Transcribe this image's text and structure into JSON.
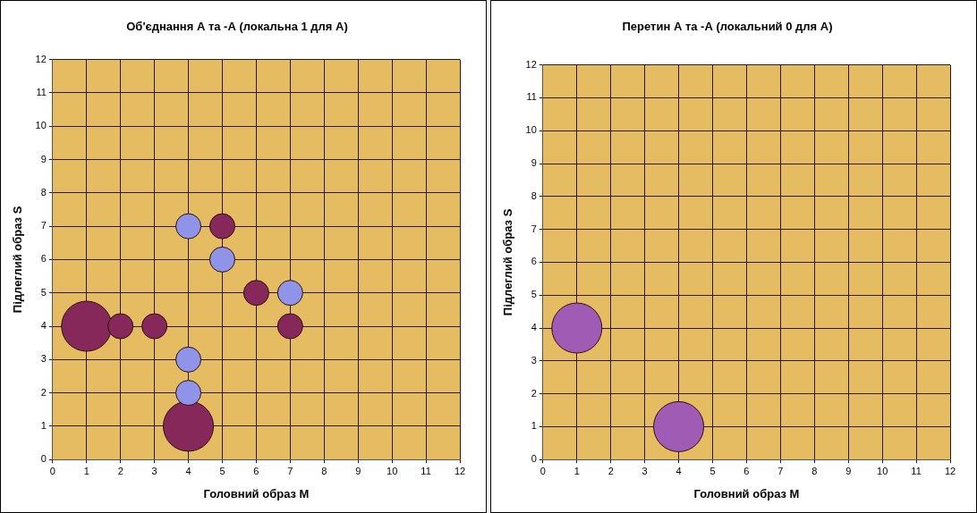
{
  "chart_data": [
    {
      "type": "bubble",
      "title": "Об'єднання А та -А (локальна 1 для А)",
      "xlabel": "Головний образ M",
      "ylabel": "Підлеглий образ S",
      "xlim": [
        0,
        12
      ],
      "ylim": [
        0,
        12
      ],
      "xticks": [
        0,
        1,
        2,
        3,
        4,
        5,
        6,
        7,
        8,
        9,
        10,
        11,
        12
      ],
      "yticks": [
        0,
        1,
        2,
        3,
        4,
        5,
        6,
        7,
        8,
        9,
        10,
        11,
        12
      ],
      "grid": true,
      "legend": false,
      "series": [
        {
          "color": "#8f94e8",
          "x": [
            4,
            5,
            7,
            4,
            4
          ],
          "values": [
            7,
            6,
            5,
            3,
            2
          ],
          "sizes": [
            0.25,
            0.25,
            0.25,
            0.25,
            0.25
          ]
        },
        {
          "color": "#86285a",
          "x": [
            5,
            6,
            1,
            2,
            3,
            7,
            4
          ],
          "values": [
            7,
            5,
            4,
            4,
            4,
            4,
            1
          ],
          "sizes": [
            0.25,
            0.25,
            1,
            0.25,
            0.25,
            0.25,
            1
          ]
        }
      ]
    },
    {
      "type": "bubble",
      "title": "Перетин А та -А (локальний 0 для А)",
      "xlabel": "Головний образ M",
      "ylabel": "Підлеглий образ S",
      "xlim": [
        0,
        12
      ],
      "ylim": [
        0,
        12
      ],
      "xticks": [
        0,
        1,
        2,
        3,
        4,
        5,
        6,
        7,
        8,
        9,
        10,
        11,
        12
      ],
      "yticks": [
        0,
        1,
        2,
        3,
        4,
        5,
        6,
        7,
        8,
        9,
        10,
        11,
        12
      ],
      "grid": true,
      "legend": false,
      "series": [
        {
          "color": "#a05cb4",
          "x": [
            1,
            4
          ],
          "values": [
            4,
            1
          ],
          "sizes": [
            1,
            1
          ]
        }
      ]
    }
  ]
}
